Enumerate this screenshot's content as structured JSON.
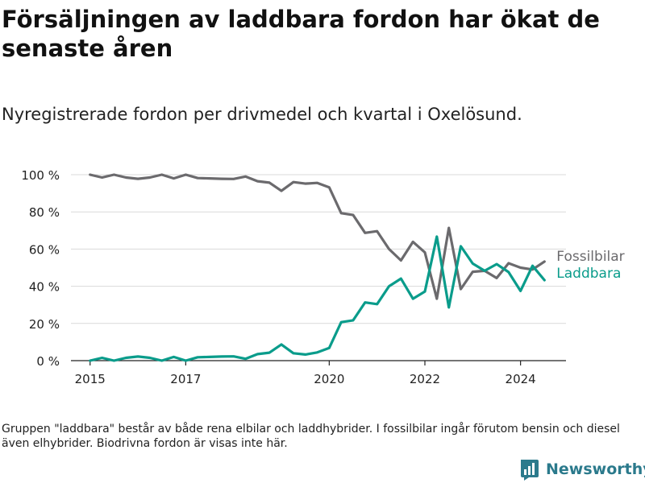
{
  "title": "Försäljningen av laddbara fordon har ökat de senaste åren",
  "subtitle": "Nyregistrerade fordon per drivmedel och kvartal i Oxelösund.",
  "footnote": "Gruppen \"laddbara\" består av både rena elbilar och laddhybrider. I fossilbilar ingår förutom bensin och diesel även elhybrider. Biodrivna fordon är visas inte här.",
  "brand": {
    "name": "Newsworthy",
    "color": "#2b7a8c",
    "icon": "newsworthy-logo-icon"
  },
  "chart_data": {
    "type": "line",
    "title": "",
    "xlabel": "",
    "ylabel": "",
    "xlim": [
      2014.6,
      2024.95
    ],
    "ylim": [
      0,
      100
    ],
    "x_ticks": [
      2015,
      2017,
      2020,
      2022,
      2024
    ],
    "x_tick_labels": [
      "2015",
      "2017",
      "2020",
      "2022",
      "2024"
    ],
    "y_ticks": [
      0,
      20,
      40,
      60,
      80,
      100
    ],
    "y_tick_labels": [
      "0 %",
      "20 %",
      "40 %",
      "60 %",
      "80 %",
      "100 %"
    ],
    "grid": "horizontal",
    "legend": "direct labels at line ends",
    "x": [
      2015.0,
      2015.25,
      2015.5,
      2015.75,
      2016.0,
      2016.25,
      2016.5,
      2016.75,
      2017.0,
      2017.25,
      2017.5,
      2017.75,
      2018.0,
      2018.25,
      2018.5,
      2018.75,
      2019.0,
      2019.25,
      2019.5,
      2019.75,
      2020.0,
      2020.25,
      2020.5,
      2020.75,
      2021.0,
      2021.25,
      2021.5,
      2021.75,
      2022.0,
      2022.25,
      2022.5,
      2022.75,
      2023.0,
      2023.25,
      2023.5,
      2023.75,
      2024.0,
      2024.25,
      2024.5
    ],
    "series": [
      {
        "name": "Fossilbilar",
        "color": "#6b6a6d",
        "values": [
          100,
          98.5,
          100,
          98.5,
          97.8,
          98.5,
          100,
          98,
          100,
          98.2,
          98,
          97.8,
          97.7,
          99,
          96.5,
          95.7,
          91.3,
          96,
          95.2,
          95.6,
          93.2,
          79.3,
          78.3,
          68.7,
          69.6,
          60,
          53.9,
          63.9,
          58.2,
          33.3,
          71.4,
          38.5,
          47.8,
          48.3,
          44.4,
          52.4,
          50,
          49,
          53.3
        ]
      },
      {
        "name": "Laddbara",
        "color": "#0a9c8b",
        "values": [
          0,
          1.5,
          0,
          1.5,
          2.2,
          1.5,
          0,
          2,
          0,
          1.8,
          2,
          2.2,
          2.3,
          1,
          3.5,
          4.3,
          8.7,
          4,
          3.3,
          4.4,
          6.8,
          20.7,
          21.7,
          31.3,
          30.4,
          40,
          44.1,
          33.3,
          37.2,
          66.7,
          28.6,
          61.5,
          52.2,
          48.3,
          51.9,
          47.6,
          37.5,
          51,
          43.3
        ]
      }
    ]
  }
}
